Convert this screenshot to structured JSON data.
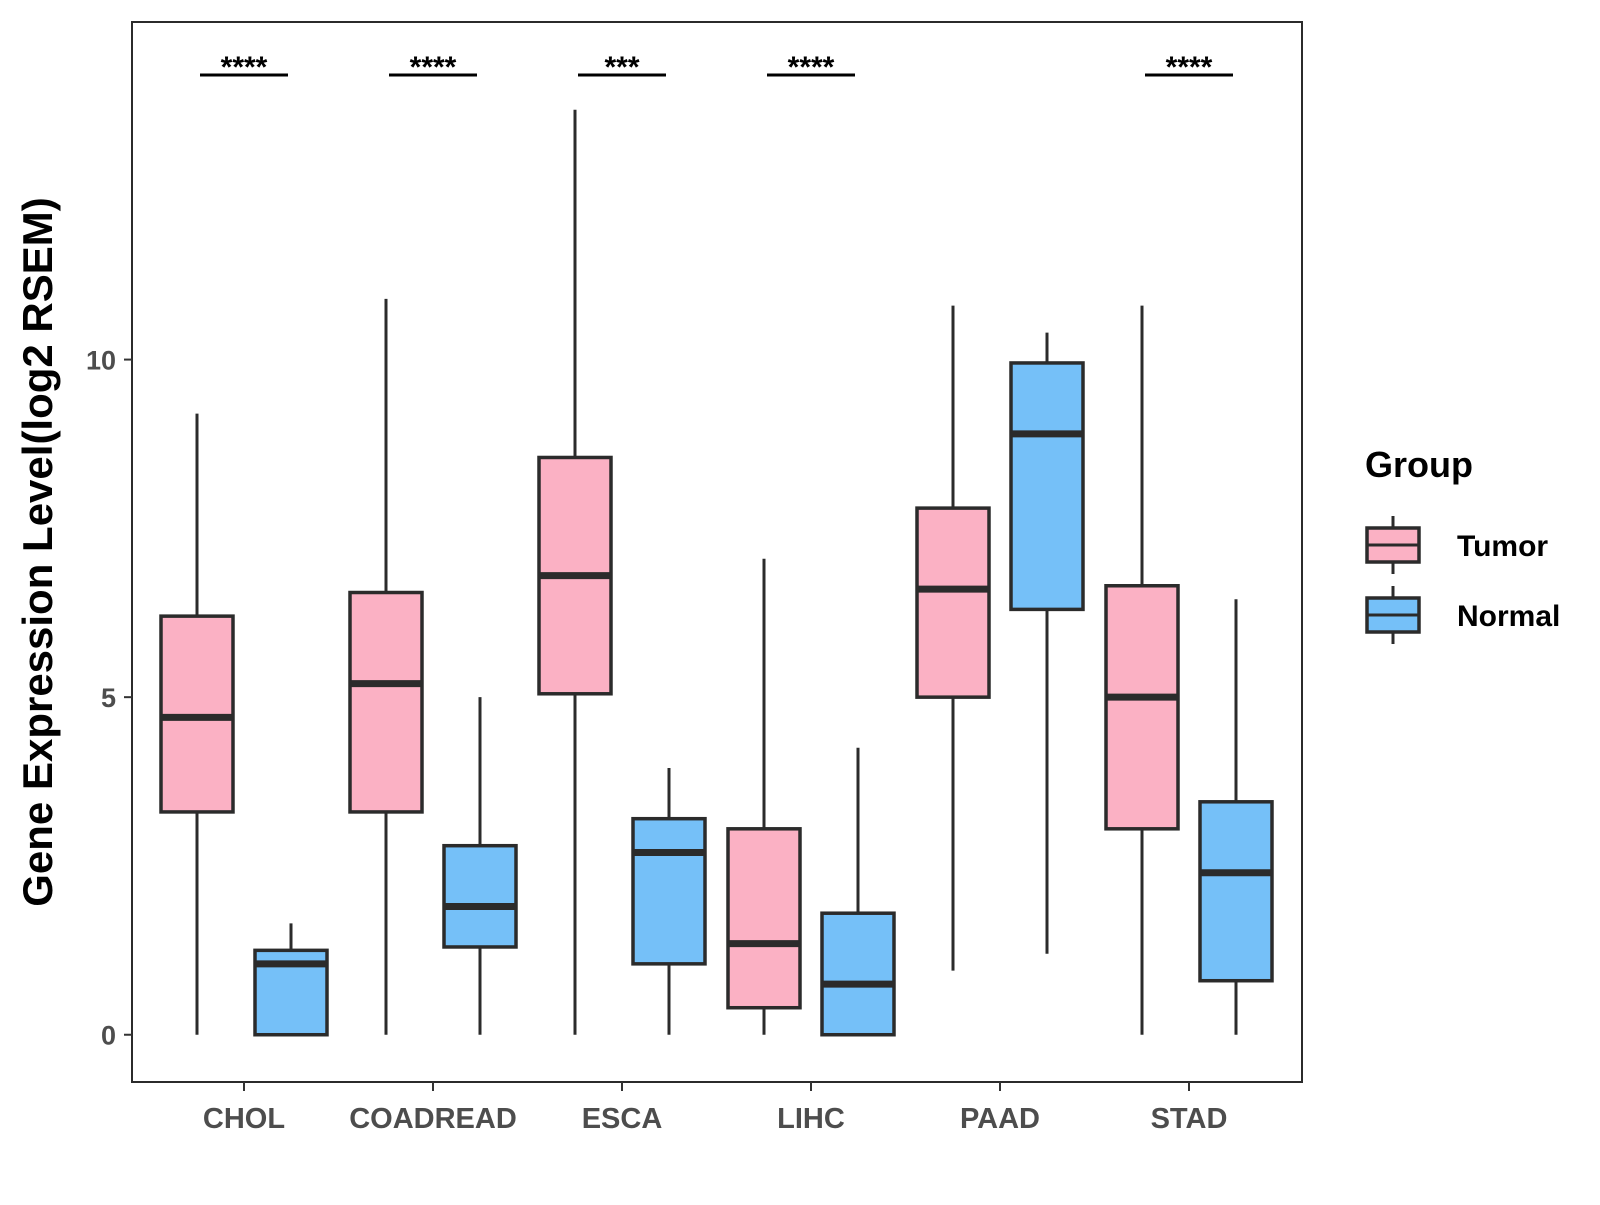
{
  "chart_data": {
    "type": "boxplot",
    "ylabel": "Gene Expression Level(log2 RSEM)",
    "xlabel": "",
    "ylim": [
      -0.7,
      15
    ],
    "yticks": [
      0,
      5,
      10
    ],
    "categories": [
      "CHOL",
      "COADREAD",
      "ESCA",
      "LIHC",
      "PAAD",
      "STAD"
    ],
    "legend": {
      "title": "Group",
      "position": "right",
      "entries": [
        {
          "name": "Tumor",
          "color": "#FBB1C4"
        },
        {
          "name": "Normal",
          "color": "#75C0F8"
        }
      ]
    },
    "series": [
      {
        "name": "Tumor",
        "color": "#FBB1C4",
        "boxes": [
          {
            "category": "CHOL",
            "min": 0,
            "q1": 3.3,
            "median": 4.7,
            "q3": 6.2,
            "max": 9.2
          },
          {
            "category": "COADREAD",
            "min": 0,
            "q1": 3.3,
            "median": 5.2,
            "q3": 6.55,
            "max": 10.9
          },
          {
            "category": "ESCA",
            "min": 0,
            "q1": 5.05,
            "median": 6.8,
            "q3": 8.55,
            "max": 13.7
          },
          {
            "category": "LIHC",
            "min": 0,
            "q1": 0.4,
            "median": 1.35,
            "q3": 3.05,
            "max": 7.05
          },
          {
            "category": "PAAD",
            "min": 0.95,
            "q1": 5.0,
            "median": 6.6,
            "q3": 7.8,
            "max": 10.8
          },
          {
            "category": "STAD",
            "min": 0,
            "q1": 3.05,
            "median": 5.0,
            "q3": 6.65,
            "max": 10.8
          }
        ]
      },
      {
        "name": "Normal",
        "color": "#75C0F8",
        "boxes": [
          {
            "category": "CHOL",
            "min": 0,
            "q1": 0,
            "median": 1.05,
            "q3": 1.25,
            "max": 1.65
          },
          {
            "category": "COADREAD",
            "min": 0,
            "q1": 1.3,
            "median": 1.9,
            "q3": 2.8,
            "max": 5.0
          },
          {
            "category": "ESCA",
            "min": 0,
            "q1": 1.05,
            "median": 2.7,
            "q3": 3.2,
            "max": 3.95
          },
          {
            "category": "LIHC",
            "min": 0,
            "q1": 0,
            "median": 0.75,
            "q3": 1.8,
            "max": 4.25
          },
          {
            "category": "PAAD",
            "min": 1.2,
            "q1": 6.3,
            "median": 8.9,
            "q3": 9.95,
            "max": 10.4
          },
          {
            "category": "STAD",
            "min": 0,
            "q1": 0.8,
            "median": 2.4,
            "q3": 3.45,
            "max": 6.45
          }
        ]
      }
    ],
    "significance": [
      {
        "category": "CHOL",
        "label": "****"
      },
      {
        "category": "COADREAD",
        "label": "****"
      },
      {
        "category": "ESCA",
        "label": "***"
      },
      {
        "category": "LIHC",
        "label": "****"
      },
      {
        "category": "PAAD",
        "label": ""
      },
      {
        "category": "STAD",
        "label": "****"
      }
    ]
  }
}
